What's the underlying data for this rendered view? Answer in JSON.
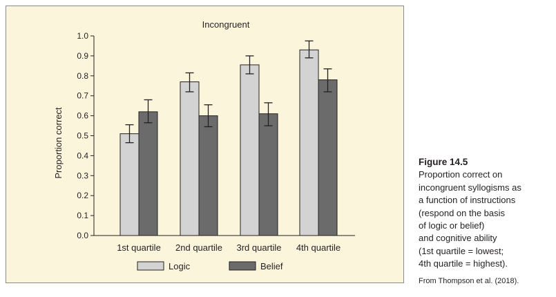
{
  "figure": {
    "label": "Figure 14.5",
    "caption_lines": [
      "Proportion correct on",
      "incongruent syllogisms as",
      "a function of instructions",
      "(respond on the basis",
      "of logic or belief)",
      "and cognitive ability",
      "(1st quartile = lowest;",
      "4th quartile = highest)."
    ],
    "source": "From Thompson et al. (2018)."
  },
  "chart_data": {
    "type": "bar",
    "title": "Incongruent",
    "xlabel": "",
    "ylabel": "Proportion correct",
    "ylim": [
      0,
      1.0
    ],
    "yticks": [
      "0.0",
      "0.1",
      "0.2",
      "0.3",
      "0.4",
      "0.5",
      "0.6",
      "0.7",
      "0.8",
      "0.9",
      "1.0"
    ],
    "categories": [
      "1st quartile",
      "2nd quartile",
      "3rd quartile",
      "4th quartile"
    ],
    "series": [
      {
        "name": "Logic",
        "values": [
          0.51,
          0.77,
          0.855,
          0.93
        ],
        "error_low": [
          0.465,
          0.72,
          0.81,
          0.89
        ],
        "error_high": [
          0.555,
          0.815,
          0.9,
          0.975
        ],
        "color": "#d3d3d3"
      },
      {
        "name": "Belief",
        "values": [
          0.62,
          0.6,
          0.61,
          0.78
        ],
        "error_low": [
          0.565,
          0.545,
          0.55,
          0.72
        ],
        "error_high": [
          0.68,
          0.655,
          0.665,
          0.835
        ],
        "color": "#6b6b6b"
      }
    ],
    "grid": false,
    "legend_position": "bottom"
  }
}
